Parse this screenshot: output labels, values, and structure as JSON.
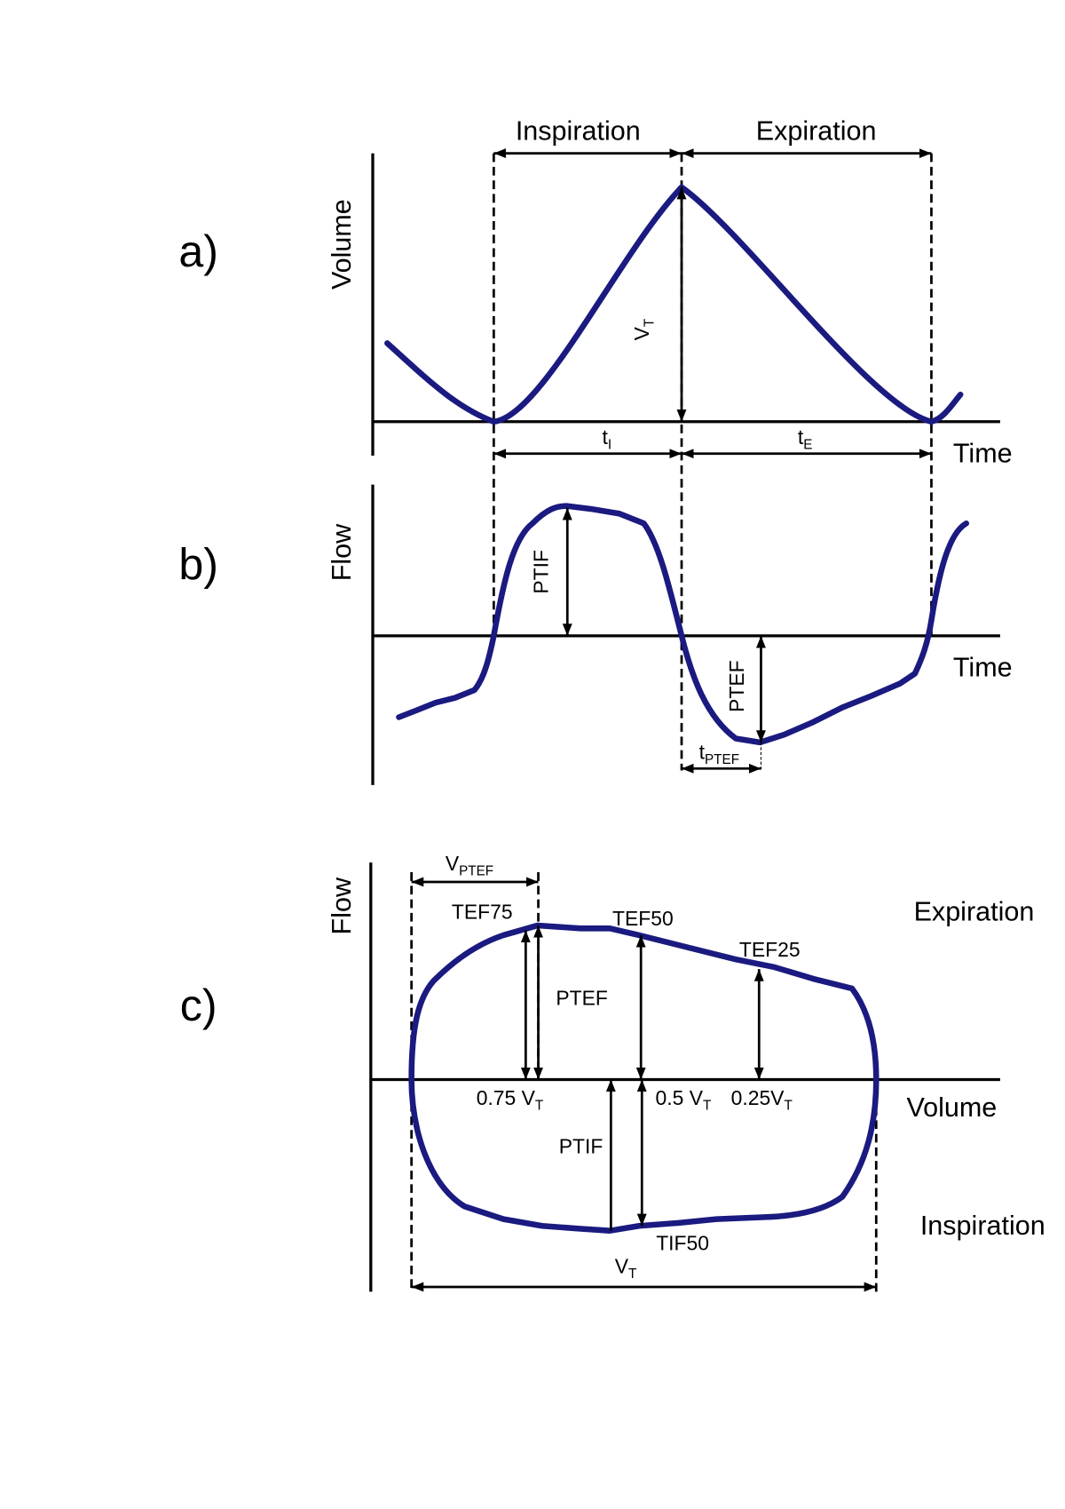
{
  "panel_a": {
    "label": "a)",
    "y_axis": "Volume",
    "x_axis": "Time",
    "inspiration": "Inspiration",
    "expiration": "Expiration",
    "vt": {
      "main": "V",
      "sub": "T"
    },
    "ti": {
      "main": "t",
      "sub": "I"
    },
    "te": {
      "main": "t",
      "sub": "E"
    }
  },
  "panel_b": {
    "label": "b)",
    "y_axis": "Flow",
    "x_axis": "Time",
    "ptif": "PTIF",
    "ptef": "PTEF",
    "tptef": {
      "main": "t",
      "sub": "PTEF"
    }
  },
  "panel_c": {
    "label": "c)",
    "y_axis": "Flow",
    "x_axis": "Volume",
    "expiration": "Expiration",
    "inspiration": "Inspiration",
    "vptef": {
      "main": "V",
      "sub": "PTEF"
    },
    "tef75": "TEF75",
    "tef50": "TEF50",
    "tef25": "TEF25",
    "ptef": "PTEF",
    "ptif": "PTIF",
    "tif50": "TIF50",
    "v075": {
      "main": "0.75 V",
      "sub": "T"
    },
    "v05": {
      "main": "0.5 V",
      "sub": "T"
    },
    "v025": {
      "main": "0.25V",
      "sub": "T"
    },
    "vt": {
      "main": "V",
      "sub": "T"
    }
  }
}
